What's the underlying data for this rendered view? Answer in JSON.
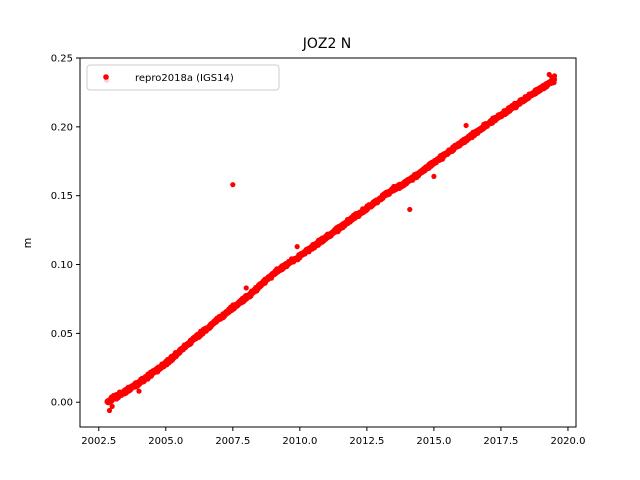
{
  "chart_data": {
    "type": "scatter",
    "title": "JOZ2 N",
    "xlabel": "",
    "ylabel": "m",
    "xlim": [
      2001.8,
      2020.3
    ],
    "ylim": [
      -0.018,
      0.25
    ],
    "x_ticks": [
      2002.5,
      2005.0,
      2007.5,
      2010.0,
      2012.5,
      2015.0,
      2017.5,
      2020.0
    ],
    "x_tick_labels": [
      "2002.5",
      "2005.0",
      "2007.5",
      "2010.0",
      "2012.5",
      "2015.0",
      "2017.5",
      "2020.0"
    ],
    "y_ticks": [
      0.0,
      0.05,
      0.1,
      0.15,
      0.2,
      0.25
    ],
    "y_tick_labels": [
      "0.00",
      "0.05",
      "0.10",
      "0.15",
      "0.20",
      "0.25"
    ],
    "grid": false,
    "legend_position": "top-left",
    "colors": {
      "series": "#ff0000"
    },
    "series": [
      {
        "name": "repro2018a (IGS14)",
        "marker": "circle",
        "color": "#ff0000",
        "trend": {
          "x": [
            2002.8,
            2004.0,
            2005.0,
            2006.0,
            2007.0,
            2008.0,
            2009.0,
            2009.5,
            2010.0,
            2011.0,
            2012.0,
            2013.0,
            2013.5,
            2014.0,
            2015.0,
            2016.0,
            2017.0,
            2018.0,
            2019.0,
            2019.5
          ],
          "y": [
            0.0,
            0.014,
            0.028,
            0.045,
            0.061,
            0.076,
            0.093,
            0.1,
            0.106,
            0.12,
            0.134,
            0.148,
            0.155,
            0.16,
            0.174,
            0.188,
            0.202,
            0.215,
            0.228,
            0.234
          ]
        },
        "outliers": {
          "x": [
            2007.5,
            2002.9,
            2003.0,
            2003.3,
            2004.0,
            2008.0,
            2009.9,
            2012.2,
            2014.1,
            2015.0,
            2016.2,
            2019.3,
            2019.4,
            2019.5
          ],
          "y": [
            0.158,
            -0.006,
            -0.003,
            0.005,
            0.008,
            0.083,
            0.113,
            0.135,
            0.14,
            0.164,
            0.201,
            0.238,
            0.236,
            0.237
          ]
        }
      }
    ]
  }
}
